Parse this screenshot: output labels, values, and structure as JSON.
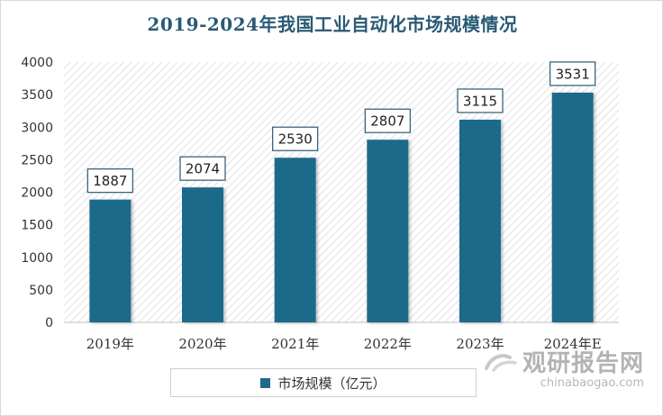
{
  "chart_data": {
    "type": "bar",
    "title": "2019-2024年我国工业自动化市场规模情况",
    "categories": [
      "2019年",
      "2020年",
      "2021年",
      "2022年",
      "2023年",
      "2024年E"
    ],
    "series": [
      {
        "name": "市场规模（亿元）",
        "values": [
          1887,
          2074,
          2530,
          2807,
          3115,
          3531
        ]
      }
    ],
    "ylim": [
      0,
      4000
    ],
    "yticks": [
      0,
      500,
      1000,
      1500,
      2000,
      2500,
      3000,
      3500,
      4000
    ],
    "grid": false,
    "legend": "bottom",
    "plot_background": "diagonal-hatch",
    "bar_color": "#1e6a8a"
  },
  "watermark": {
    "title": "观研报告网",
    "url": "chinabaogao.com"
  }
}
